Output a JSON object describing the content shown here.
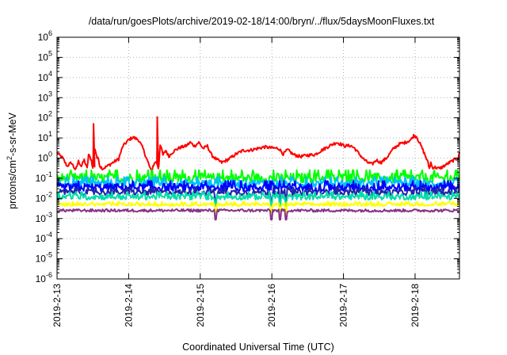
{
  "chart_data": {
    "type": "line",
    "title": "/data/run/goesPlots/archive/2019-02-18/14:00/bryn/../flux/5daysMoonFluxes.txt",
    "xlabel": "Coordinated Universal Time (UTC)",
    "ylabel": "protons/cm²-s-sr-MeV",
    "yscale": "log",
    "ylim": [
      1e-06,
      1000000.0
    ],
    "xlim": [
      0,
      5.62
    ],
    "grid": true,
    "x_ticks": [
      {
        "x": 0,
        "label": "2019-2-13"
      },
      {
        "x": 1,
        "label": "2019-2-14"
      },
      {
        "x": 2,
        "label": "2019-2-15"
      },
      {
        "x": 3,
        "label": "2019-2-16"
      },
      {
        "x": 4,
        "label": "2019-2-17"
      },
      {
        "x": 5,
        "label": "2019-2-18"
      }
    ],
    "y_ticks": [
      {
        "exp": 6,
        "base": "10",
        "sup": "6"
      },
      {
        "exp": 5,
        "base": "10",
        "sup": "5"
      },
      {
        "exp": 4,
        "base": "10",
        "sup": "4"
      },
      {
        "exp": 3,
        "base": "10",
        "sup": "3"
      },
      {
        "exp": 2,
        "base": "10",
        "sup": "2"
      },
      {
        "exp": 1,
        "base": "10",
        "sup": "1"
      },
      {
        "exp": 0,
        "base": "10",
        "sup": "0"
      },
      {
        "exp": -1,
        "base": "10",
        "sup": "-1"
      },
      {
        "exp": -2,
        "base": "10",
        "sup": "-2"
      },
      {
        "exp": -3,
        "base": "10",
        "sup": "-3"
      },
      {
        "exp": -4,
        "base": "10",
        "sup": "-4"
      },
      {
        "exp": -5,
        "base": "10",
        "sup": "-5"
      },
      {
        "exp": -6,
        "base": "10",
        "sup": "-6"
      }
    ],
    "series": [
      {
        "color": "#ff0000",
        "width": 2,
        "values": [
          [
            0,
            1.8
          ],
          [
            0.08,
            1.0
          ],
          [
            0.14,
            0.4
          ],
          [
            0.2,
            0.6
          ],
          [
            0.26,
            0.25
          ],
          [
            0.3,
            0.7
          ],
          [
            0.34,
            0.4
          ],
          [
            0.38,
            0.8
          ],
          [
            0.42,
            0.3
          ],
          [
            0.44,
            1.5
          ],
          [
            0.48,
            0.8
          ],
          [
            0.5,
            0.3
          ],
          [
            0.53,
            3.0
          ],
          [
            0.56,
            1.0
          ],
          [
            0.58,
            0.9
          ],
          [
            0.6,
            0.4
          ],
          [
            0.64,
            0.3
          ],
          [
            0.7,
            0.4
          ],
          [
            0.78,
            0.6
          ],
          [
            0.86,
            0.9
          ],
          [
            0.92,
            4
          ],
          [
            1.0,
            8
          ],
          [
            1.06,
            11
          ],
          [
            1.14,
            8
          ],
          [
            1.2,
            3
          ],
          [
            1.24,
            1.2
          ],
          [
            1.28,
            0.5
          ],
          [
            1.32,
            0.2
          ],
          [
            1.34,
            0.4
          ],
          [
            1.38,
            0.7
          ],
          [
            1.42,
            0.4
          ],
          [
            1.44,
            5
          ],
          [
            1.48,
            1.4
          ],
          [
            1.52,
            2.4
          ],
          [
            1.56,
            1.2
          ],
          [
            1.6,
            1.8
          ],
          [
            1.66,
            2.6
          ],
          [
            1.72,
            3.4
          ],
          [
            1.8,
            4
          ],
          [
            1.86,
            6
          ],
          [
            1.92,
            4
          ],
          [
            1.98,
            6
          ],
          [
            2.04,
            3
          ],
          [
            2.1,
            4
          ],
          [
            2.16,
            1.4
          ],
          [
            2.22,
            0.9
          ],
          [
            2.3,
            0.6
          ],
          [
            2.4,
            0.9
          ],
          [
            2.5,
            1.6
          ],
          [
            2.6,
            2.4
          ],
          [
            2.7,
            2.5
          ],
          [
            2.8,
            3
          ],
          [
            2.9,
            3.6
          ],
          [
            3.0,
            3.2
          ],
          [
            3.1,
            3
          ],
          [
            3.16,
            1.6
          ],
          [
            3.22,
            2.6
          ],
          [
            3.3,
            1.5
          ],
          [
            3.4,
            1.2
          ],
          [
            3.5,
            1.4
          ],
          [
            3.6,
            1.5
          ],
          [
            3.7,
            2.5
          ],
          [
            3.8,
            4
          ],
          [
            3.9,
            6
          ],
          [
            3.96,
            5
          ],
          [
            4.02,
            4
          ],
          [
            4.1,
            4.2
          ],
          [
            4.16,
            3
          ],
          [
            4.22,
            1.6
          ],
          [
            4.28,
            0.9
          ],
          [
            4.34,
            0.6
          ],
          [
            4.4,
            0.5
          ],
          [
            4.46,
            0.8
          ],
          [
            4.52,
            0.6
          ],
          [
            4.6,
            1.0
          ],
          [
            4.7,
            3
          ],
          [
            4.78,
            5
          ],
          [
            4.86,
            6
          ],
          [
            4.94,
            8
          ],
          [
            4.98,
            13
          ],
          [
            5.02,
            12
          ],
          [
            5.06,
            6
          ],
          [
            5.1,
            3
          ],
          [
            5.14,
            1.4
          ],
          [
            5.18,
            0.6
          ],
          [
            5.2,
            0.3
          ],
          [
            5.22,
            0.6
          ],
          [
            5.24,
            0.35
          ],
          [
            5.28,
            0.35
          ],
          [
            5.34,
            0.3
          ],
          [
            5.4,
            0.4
          ],
          [
            5.48,
            0.6
          ],
          [
            5.54,
            0.8
          ],
          [
            5.6,
            1.0
          ],
          [
            5.62,
            2.0
          ]
        ],
        "spikes": [
          [
            0.51,
            50
          ],
          [
            1.4,
            110
          ]
        ]
      },
      {
        "color": "#00ff00",
        "width": 2,
        "base": 0.1,
        "amp": 0.25
      },
      {
        "color": "#00bfff",
        "width": 2,
        "base": 0.055,
        "amp": 0.2
      },
      {
        "color": "#0000ff",
        "width": 2,
        "base": 0.035,
        "amp": 0.2
      },
      {
        "color": "#2323aa",
        "width": 2,
        "base": 0.02,
        "amp": 0.15
      },
      {
        "color": "#00ddaa",
        "width": 2,
        "base": 0.012,
        "amp": 0.15
      },
      {
        "color": "#ffff00",
        "width": 2,
        "base": 0.005,
        "amp": 0.08
      },
      {
        "color": "#883388",
        "width": 2,
        "base": 0.0025,
        "amp": 0.07
      }
    ]
  }
}
